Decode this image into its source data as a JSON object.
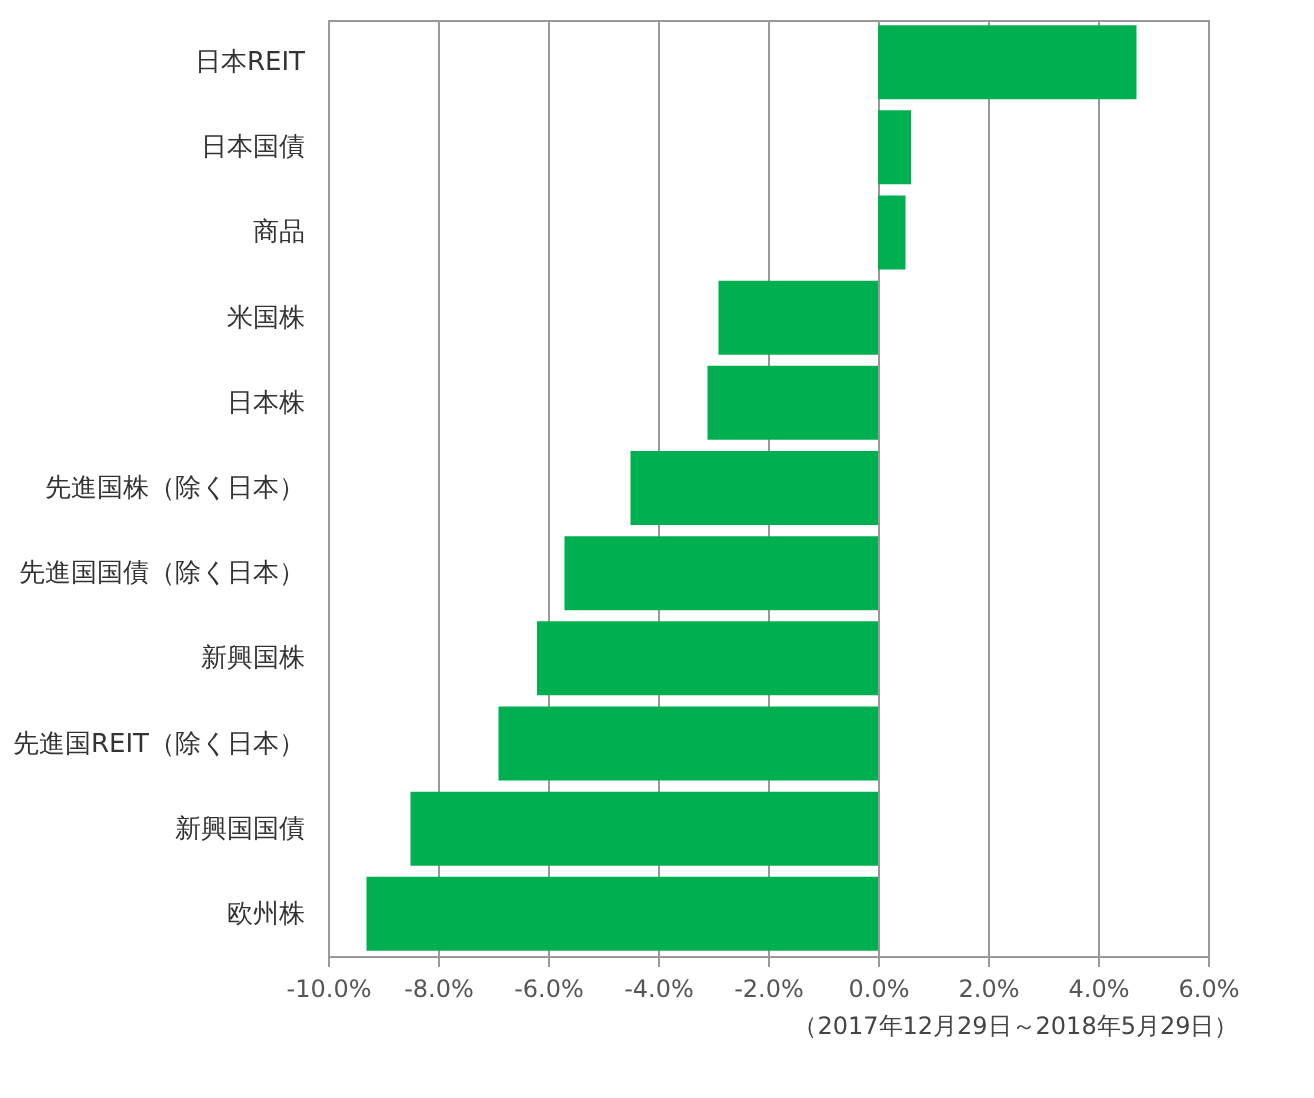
{
  "chart_data": {
    "type": "bar",
    "orientation": "horizontal",
    "categories": [
      "日本REIT",
      "日本国債",
      "商品",
      "米国株",
      "日本株",
      "先進国株（除く日本）",
      "先進国国債（除く日本）",
      "新興国株",
      "先進国REIT（除く日本）",
      "新興国国債",
      "欧州株"
    ],
    "values": [
      4.7,
      0.6,
      0.5,
      -2.9,
      -3.1,
      -4.5,
      -5.7,
      -6.2,
      -6.9,
      -8.5,
      -9.3
    ],
    "color": "#00b050",
    "xlim": [
      -10,
      6
    ],
    "xticks": [
      {
        "value": -10,
        "label": "-10.0%"
      },
      {
        "value": -8,
        "label": "-8.0%"
      },
      {
        "value": -6,
        "label": "-6.0%"
      },
      {
        "value": -4,
        "label": "-4.0%"
      },
      {
        "value": -2,
        "label": "-2.0%"
      },
      {
        "value": 0,
        "label": "0.0%"
      },
      {
        "value": 2,
        "label": "2.0%"
      },
      {
        "value": 4,
        "label": "4.0%"
      },
      {
        "value": 6,
        "label": "6.0%"
      }
    ],
    "grid": "x",
    "annotations": [
      "（2017年12月29日～2018年5月29日）"
    ]
  }
}
